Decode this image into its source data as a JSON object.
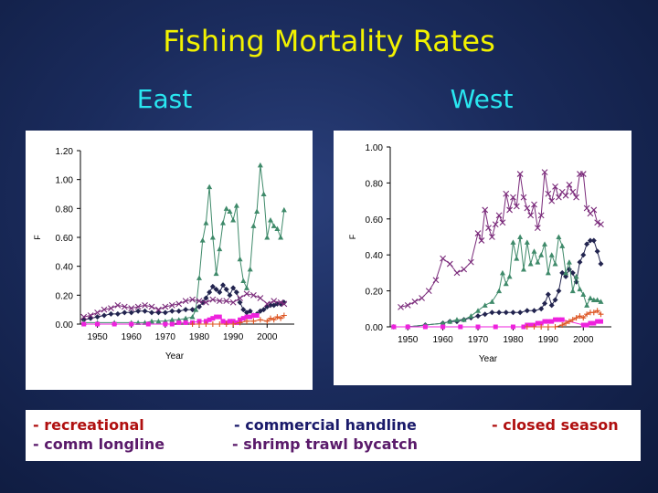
{
  "title": "Fishing Mortality Rates",
  "panels": {
    "east": "East",
    "west": "West"
  },
  "legend": [
    "- recreational",
    "- comm longline",
    "- commercial handline",
    "- shrimp trawl bycatch",
    "- closed season"
  ],
  "colors": {
    "recreational": "#22244f",
    "comm_longline": "#3f8a6a",
    "commercial_handline": "#7a2a7a",
    "shrimp_trawl_bycatch": "#ee22dd",
    "closed_season": "#dd5522"
  },
  "chart_data": [
    {
      "type": "line",
      "panel": "East",
      "xlabel": "Year",
      "ylabel": "F",
      "xlim": [
        1945,
        2008
      ],
      "ylim": [
        0,
        1.2
      ],
      "xticks": [
        "1950",
        "1960",
        "1970",
        "1980",
        "1990",
        "2000"
      ],
      "yticks": [
        "0.00",
        "0.20",
        "0.40",
        "0.60",
        "0.80",
        "1.00",
        "1.20"
      ],
      "grid": false,
      "series": [
        {
          "key": "recreational",
          "marker": "diamond",
          "x": [
            1946,
            1948,
            1950,
            1952,
            1954,
            1956,
            1958,
            1960,
            1962,
            1964,
            1966,
            1968,
            1970,
            1972,
            1974,
            1976,
            1978,
            1980,
            1981,
            1982,
            1983,
            1984,
            1985,
            1986,
            1987,
            1988,
            1989,
            1990,
            1991,
            1992,
            1993,
            1994,
            1995,
            1996,
            1997,
            1998,
            1999,
            2000,
            2001,
            2002,
            2003,
            2004,
            2005
          ],
          "y": [
            0.03,
            0.04,
            0.05,
            0.06,
            0.07,
            0.07,
            0.08,
            0.08,
            0.09,
            0.09,
            0.08,
            0.08,
            0.08,
            0.09,
            0.09,
            0.1,
            0.1,
            0.12,
            0.15,
            0.18,
            0.22,
            0.26,
            0.24,
            0.22,
            0.27,
            0.24,
            0.2,
            0.25,
            0.22,
            0.15,
            0.1,
            0.08,
            0.09,
            0.06,
            0.07,
            0.09,
            0.1,
            0.12,
            0.13,
            0.13,
            0.14,
            0.14,
            0.15
          ]
        },
        {
          "key": "comm_longline",
          "marker": "triangle",
          "x": [
            1946,
            1950,
            1955,
            1960,
            1962,
            1964,
            1966,
            1968,
            1970,
            1972,
            1974,
            1976,
            1978,
            1979,
            1980,
            1981,
            1982,
            1983,
            1984,
            1985,
            1986,
            1987,
            1988,
            1989,
            1990,
            1991,
            1992,
            1993,
            1994,
            1995,
            1996,
            1997,
            1998,
            1999,
            2000,
            2001,
            2002,
            2003,
            2004,
            2005
          ],
          "y": [
            0.01,
            0.01,
            0.01,
            0.01,
            0.01,
            0.01,
            0.02,
            0.02,
            0.02,
            0.03,
            0.03,
            0.04,
            0.05,
            0.1,
            0.32,
            0.58,
            0.7,
            0.95,
            0.6,
            0.35,
            0.52,
            0.7,
            0.8,
            0.78,
            0.72,
            0.82,
            0.45,
            0.3,
            0.25,
            0.38,
            0.68,
            0.78,
            1.1,
            0.9,
            0.6,
            0.72,
            0.68,
            0.66,
            0.6,
            0.79
          ]
        },
        {
          "key": "commercial_handline",
          "marker": "x",
          "x": [
            1946,
            1948,
            1950,
            1952,
            1954,
            1956,
            1958,
            1960,
            1962,
            1964,
            1966,
            1968,
            1970,
            1972,
            1974,
            1976,
            1978,
            1980,
            1982,
            1984,
            1986,
            1988,
            1990,
            1992,
            1994,
            1996,
            1998,
            2000,
            2002,
            2004,
            2005
          ],
          "y": [
            0.05,
            0.06,
            0.08,
            0.1,
            0.11,
            0.13,
            0.12,
            0.11,
            0.12,
            0.13,
            0.12,
            0.1,
            0.12,
            0.13,
            0.14,
            0.16,
            0.17,
            0.16,
            0.15,
            0.17,
            0.16,
            0.16,
            0.15,
            0.18,
            0.21,
            0.2,
            0.18,
            0.14,
            0.16,
            0.15,
            0.14
          ]
        },
        {
          "key": "shrimp_trawl_bycatch",
          "marker": "square",
          "x": [
            1946,
            1950,
            1955,
            1960,
            1965,
            1970,
            1972,
            1974,
            1976,
            1978,
            1980,
            1982,
            1983,
            1984,
            1985,
            1986,
            1987,
            1988,
            1989,
            1990,
            1991,
            1992,
            1993,
            1994,
            1995,
            1996,
            1997
          ],
          "y": [
            0.0,
            0.0,
            0.0,
            0.0,
            0.0,
            0.0,
            0.0,
            0.01,
            0.01,
            0.01,
            0.02,
            0.02,
            0.03,
            0.04,
            0.05,
            0.05,
            0.02,
            0.01,
            0.02,
            0.02,
            0.01,
            0.03,
            0.04,
            0.05,
            0.05,
            0.06,
            0.06
          ]
        },
        {
          "key": "closed_season",
          "marker": "plus",
          "x": [
            1978,
            1980,
            1982,
            1984,
            1986,
            1988,
            1990,
            1992,
            1994,
            1996,
            1998,
            2000,
            2001,
            2002,
            2003,
            2004,
            2005
          ],
          "y": [
            0.0,
            0.0,
            0.0,
            0.0,
            0.0,
            0.0,
            0.0,
            0.01,
            0.02,
            0.02,
            0.03,
            0.02,
            0.04,
            0.03,
            0.05,
            0.04,
            0.06
          ]
        }
      ]
    },
    {
      "type": "line",
      "panel": "West",
      "xlabel": "Year",
      "ylabel": "F",
      "xlim": [
        1945,
        2008
      ],
      "ylim": [
        0,
        1.0
      ],
      "xticks": [
        "1950",
        "1960",
        "1970",
        "1980",
        "1990",
        "2000"
      ],
      "yticks": [
        "0.00",
        "0.20",
        "0.40",
        "0.60",
        "0.80",
        "1.00"
      ],
      "grid": false,
      "series": [
        {
          "key": "recreational",
          "marker": "diamond",
          "x": [
            1946,
            1950,
            1955,
            1960,
            1962,
            1964,
            1966,
            1968,
            1970,
            1972,
            1974,
            1976,
            1978,
            1980,
            1982,
            1984,
            1986,
            1988,
            1989,
            1990,
            1991,
            1992,
            1993,
            1994,
            1995,
            1996,
            1997,
            1998,
            1999,
            2000,
            2001,
            2002,
            2003,
            2004,
            2005
          ],
          "y": [
            0.0,
            0.0,
            0.01,
            0.02,
            0.03,
            0.03,
            0.04,
            0.05,
            0.06,
            0.07,
            0.08,
            0.08,
            0.08,
            0.08,
            0.08,
            0.09,
            0.09,
            0.1,
            0.13,
            0.18,
            0.12,
            0.15,
            0.2,
            0.3,
            0.28,
            0.32,
            0.3,
            0.25,
            0.36,
            0.4,
            0.46,
            0.48,
            0.48,
            0.42,
            0.35
          ]
        },
        {
          "key": "comm_longline",
          "marker": "triangle",
          "x": [
            1946,
            1950,
            1955,
            1960,
            1962,
            1964,
            1966,
            1968,
            1970,
            1972,
            1974,
            1976,
            1977,
            1978,
            1979,
            1980,
            1981,
            1982,
            1983,
            1984,
            1985,
            1986,
            1987,
            1988,
            1989,
            1990,
            1991,
            1992,
            1993,
            1994,
            1995,
            1996,
            1997,
            1998,
            1999,
            2000,
            2001,
            2002,
            2003,
            2004,
            2005
          ],
          "y": [
            0.0,
            0.0,
            0.01,
            0.02,
            0.03,
            0.04,
            0.04,
            0.06,
            0.09,
            0.12,
            0.14,
            0.2,
            0.3,
            0.24,
            0.28,
            0.47,
            0.38,
            0.5,
            0.32,
            0.47,
            0.35,
            0.42,
            0.36,
            0.4,
            0.46,
            0.3,
            0.4,
            0.35,
            0.5,
            0.45,
            0.3,
            0.36,
            0.2,
            0.28,
            0.21,
            0.18,
            0.12,
            0.16,
            0.15,
            0.15,
            0.14
          ]
        },
        {
          "key": "commercial_handline",
          "marker": "x",
          "x": [
            1948,
            1950,
            1952,
            1954,
            1956,
            1958,
            1960,
            1962,
            1964,
            1966,
            1968,
            1970,
            1971,
            1972,
            1973,
            1974,
            1975,
            1976,
            1977,
            1978,
            1979,
            1980,
            1981,
            1982,
            1983,
            1984,
            1985,
            1986,
            1987,
            1988,
            1989,
            1990,
            1991,
            1992,
            1993,
            1994,
            1995,
            1996,
            1997,
            1998,
            1999,
            2000,
            2001,
            2002,
            2003,
            2004,
            2005
          ],
          "y": [
            0.11,
            0.12,
            0.14,
            0.16,
            0.2,
            0.26,
            0.38,
            0.35,
            0.3,
            0.32,
            0.36,
            0.52,
            0.48,
            0.65,
            0.55,
            0.5,
            0.57,
            0.62,
            0.58,
            0.74,
            0.65,
            0.72,
            0.67,
            0.85,
            0.72,
            0.66,
            0.62,
            0.68,
            0.55,
            0.62,
            0.86,
            0.74,
            0.7,
            0.78,
            0.72,
            0.75,
            0.73,
            0.79,
            0.75,
            0.72,
            0.85,
            0.85,
            0.66,
            0.63,
            0.65,
            0.58,
            0.57
          ]
        },
        {
          "key": "shrimp_trawl_bycatch",
          "marker": "square",
          "x": [
            1946,
            1950,
            1955,
            1960,
            1965,
            1970,
            1975,
            1980,
            1983,
            1984,
            1985,
            1986,
            1987,
            1988,
            1989,
            1990,
            1991,
            1992,
            1993,
            1994,
            2000,
            2001,
            2002,
            2003,
            2004,
            2005
          ],
          "y": [
            0.0,
            0.0,
            0.0,
            0.0,
            0.0,
            0.0,
            0.0,
            0.0,
            0.0,
            0.01,
            0.01,
            0.01,
            0.02,
            0.02,
            0.03,
            0.03,
            0.03,
            0.04,
            0.04,
            0.04,
            0.01,
            0.01,
            0.02,
            0.02,
            0.03,
            0.03
          ]
        },
        {
          "key": "closed_season",
          "marker": "plus",
          "x": [
            1984,
            1986,
            1988,
            1990,
            1992,
            1994,
            1995,
            1996,
            1997,
            1998,
            1999,
            2000,
            2001,
            2002,
            2003,
            2004,
            2005
          ],
          "y": [
            0.0,
            0.0,
            0.0,
            0.0,
            0.0,
            0.01,
            0.02,
            0.03,
            0.04,
            0.05,
            0.06,
            0.05,
            0.07,
            0.08,
            0.08,
            0.09,
            0.07
          ]
        }
      ]
    }
  ]
}
